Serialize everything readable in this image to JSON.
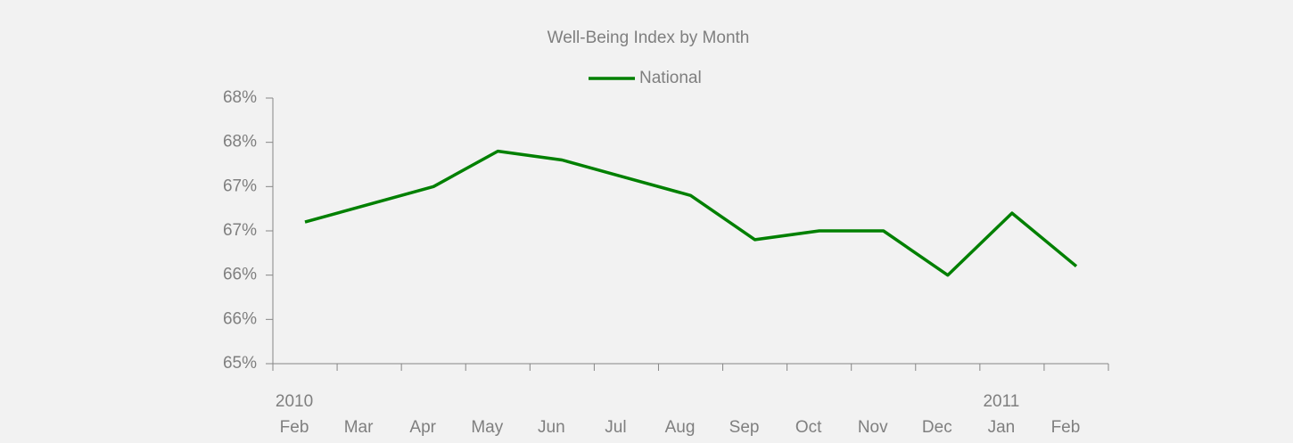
{
  "chart_data": {
    "type": "line",
    "title": "Well-Being Index by Month",
    "categories": [
      "Feb",
      "Mar",
      "Apr",
      "May",
      "Jun",
      "Jul",
      "Aug",
      "Sep",
      "Oct",
      "Nov",
      "Dec",
      "Jan",
      "Feb"
    ],
    "year_labels": [
      "2010",
      null,
      null,
      null,
      null,
      null,
      null,
      null,
      null,
      null,
      null,
      "2011",
      null
    ],
    "series": [
      {
        "name": "National",
        "color": "#008000",
        "values": [
          66.6,
          66.8,
          67.0,
          67.4,
          67.3,
          67.1,
          66.9,
          66.4,
          66.5,
          66.5,
          66.0,
          66.7,
          66.1
        ]
      }
    ],
    "ylim": [
      65,
      68
    ],
    "yticks": [
      {
        "value": 65,
        "label": "65%"
      },
      {
        "value": 65.5,
        "label": "66%"
      },
      {
        "value": 66,
        "label": "66%"
      },
      {
        "value": 66.5,
        "label": "67%"
      },
      {
        "value": 67,
        "label": "67%"
      },
      {
        "value": 67.5,
        "label": "68%"
      },
      {
        "value": 68,
        "label": "68%"
      }
    ],
    "legend": "top"
  }
}
